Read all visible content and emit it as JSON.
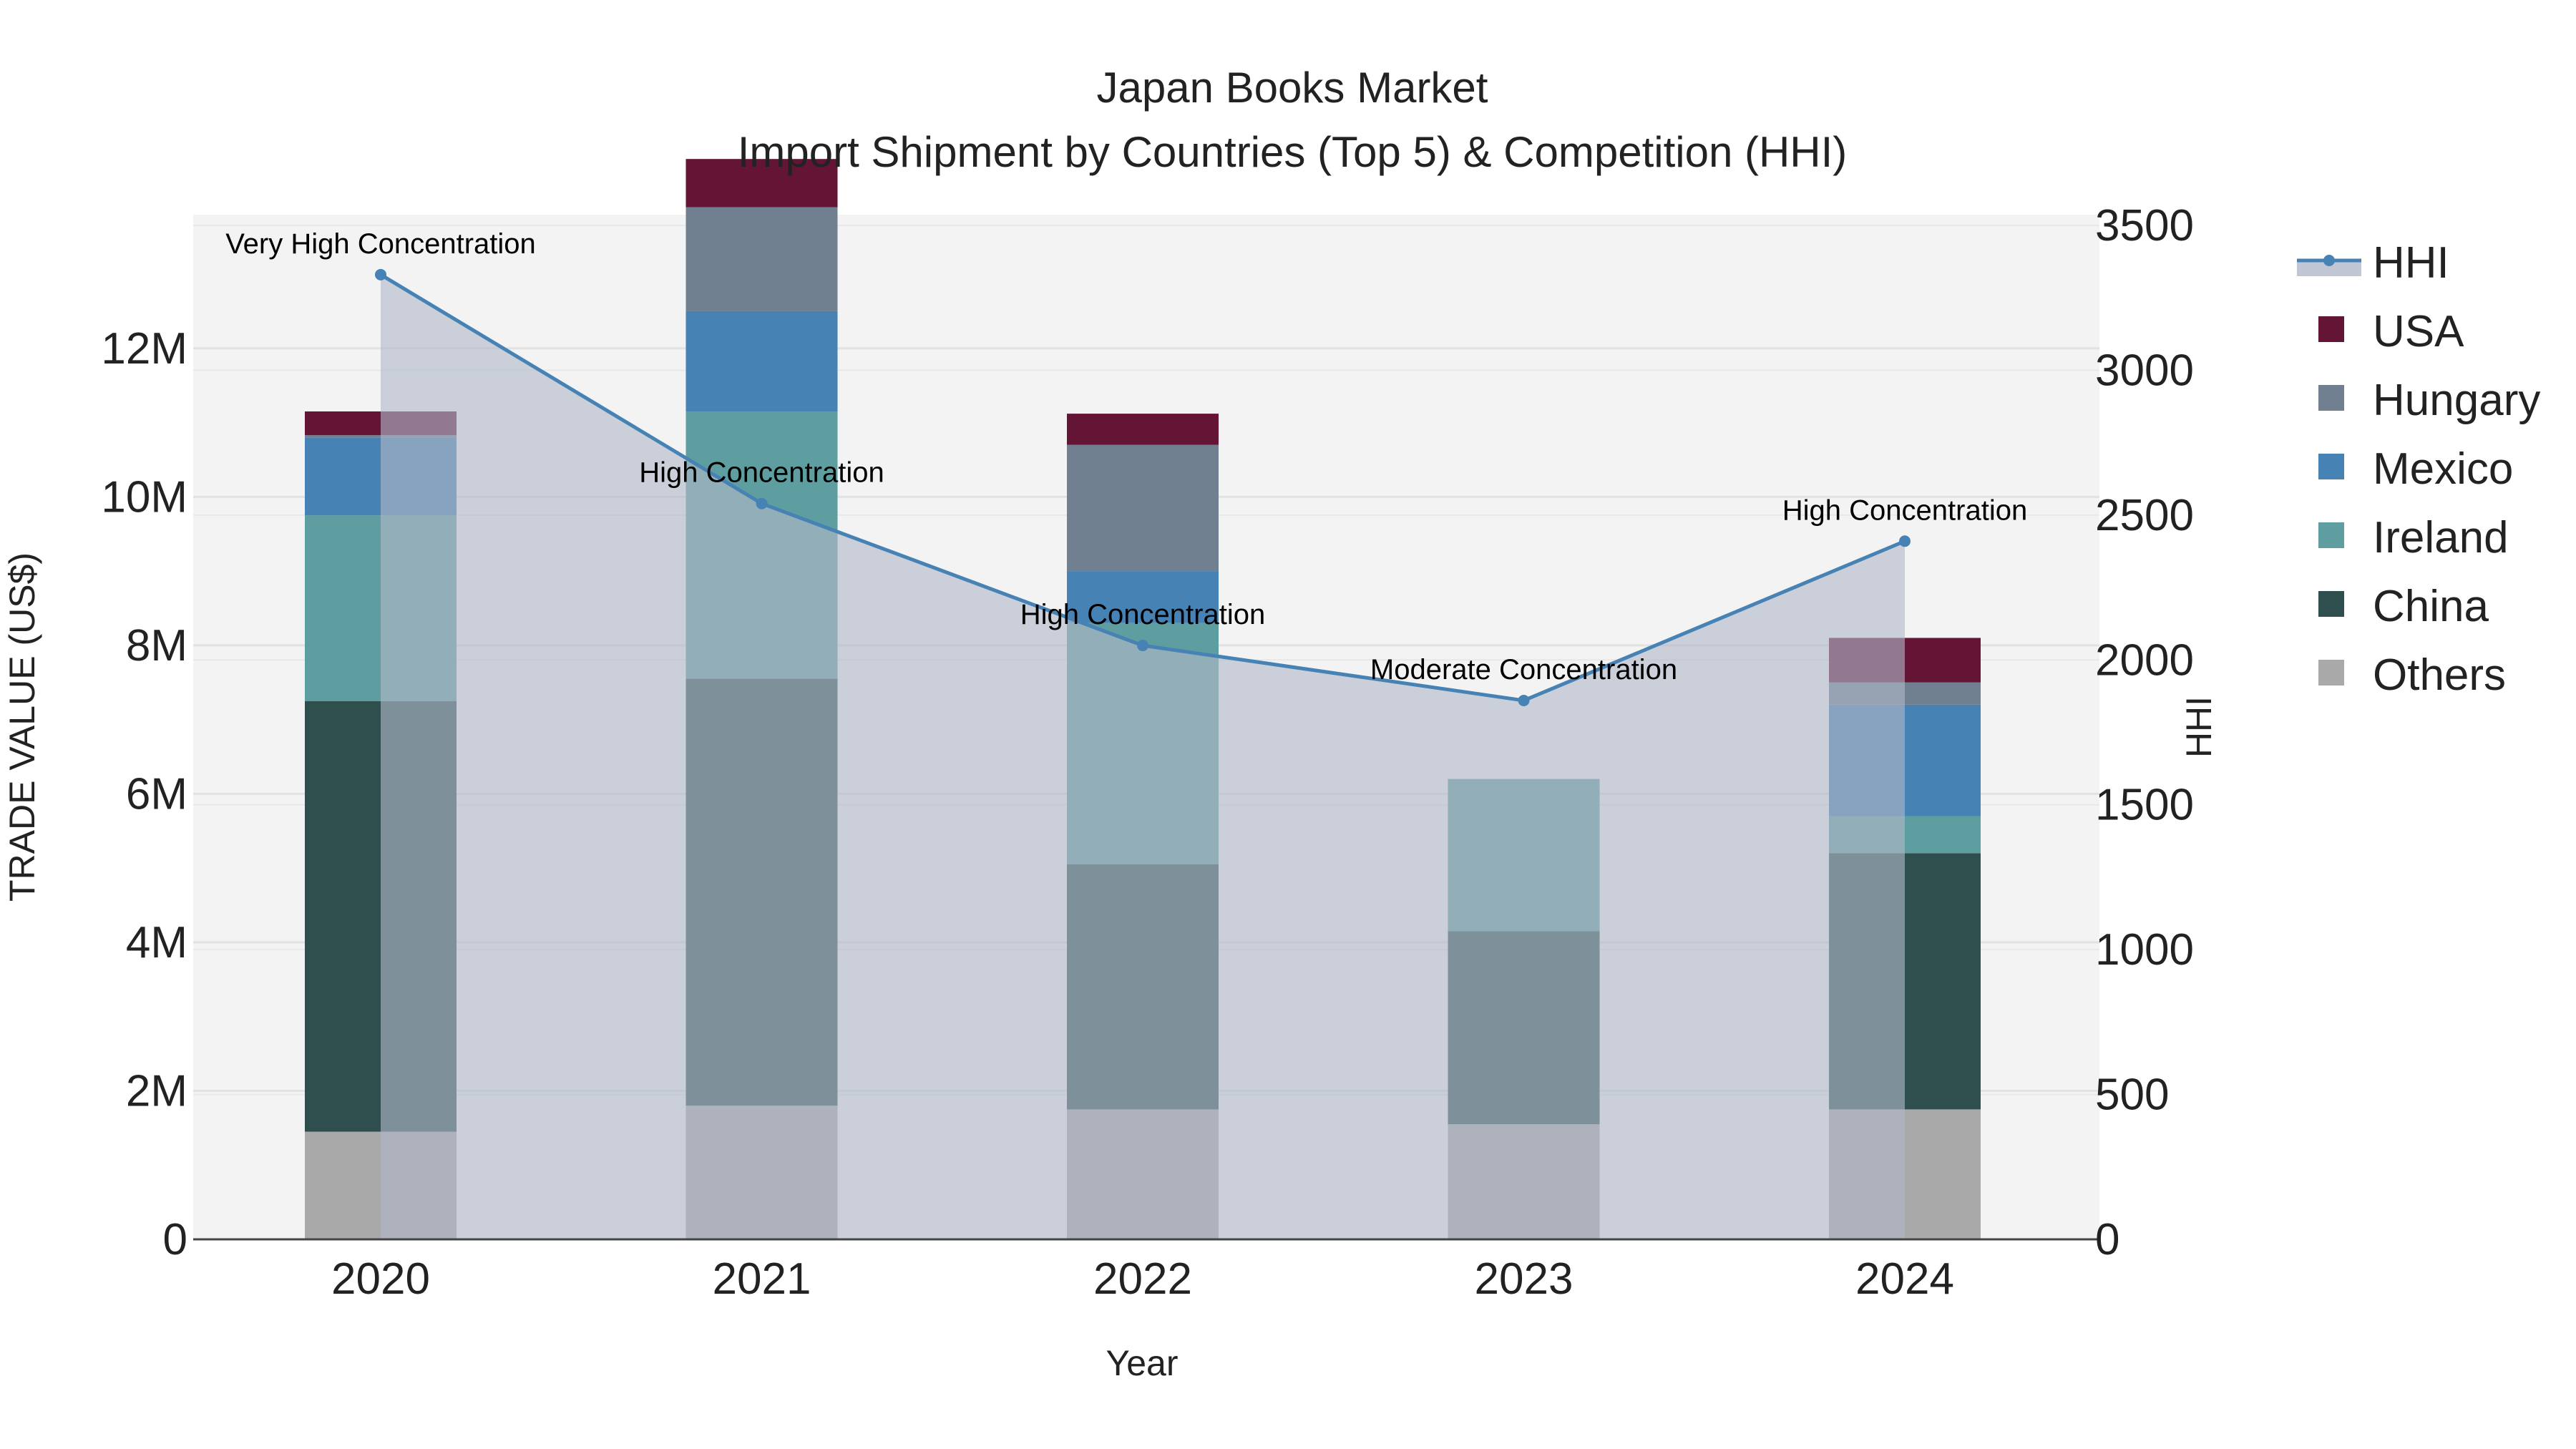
{
  "chart_data": {
    "type": "bar",
    "barmode": "stack",
    "title": "Japan Books Market",
    "subtitle": "Import Shipment by Countries (Top 5) & Competition (HHI)",
    "xlabel": "Year",
    "ylabel": "TRADE VALUE (US$)",
    "y2label": "HHI",
    "categories": [
      "2020",
      "2021",
      "2022",
      "2023",
      "2024"
    ],
    "ylim": [
      0,
      13800000
    ],
    "y_ticks": [
      0,
      2000000,
      4000000,
      6000000,
      8000000,
      10000000,
      12000000
    ],
    "y_tick_labels": [
      "0",
      "2M",
      "4M",
      "6M",
      "8M",
      "10M",
      "12M"
    ],
    "y2lim": [
      0,
      3500
    ],
    "y2_ticks": [
      0,
      500,
      1000,
      1500,
      2000,
      2500,
      3000,
      3500
    ],
    "y2_tick_labels": [
      "0",
      "500",
      "1000",
      "1500",
      "2000",
      "2500",
      "3000",
      "3500"
    ],
    "series": [
      {
        "name": "Others",
        "color": "#A9A9A9",
        "values": [
          1450000,
          1800000,
          1750000,
          1550000,
          1750000
        ]
      },
      {
        "name": "China",
        "color": "#2F4F4F",
        "values": [
          5800000,
          5750000,
          3300000,
          2600000,
          3450000
        ]
      },
      {
        "name": "Ireland",
        "color": "#5F9EA0",
        "values": [
          2500000,
          3600000,
          3250000,
          2050000,
          500000
        ]
      },
      {
        "name": "Mexico",
        "color": "#4682B4",
        "values": [
          1050000,
          1350000,
          700000,
          0,
          1500000
        ]
      },
      {
        "name": "Hungary",
        "color": "#708090",
        "values": [
          30000,
          1400000,
          1700000,
          0,
          300000
        ]
      },
      {
        "name": "USA",
        "color": "#641434",
        "values": [
          320000,
          650000,
          420000,
          0,
          600000
        ]
      }
    ],
    "line": {
      "name": "HHI",
      "axis": "y2",
      "color": "#4682B4",
      "fill_color": "#B0B8C8",
      "values": [
        3330,
        2540,
        2050,
        1860,
        2410
      ],
      "annotations": [
        "Very High Concentration",
        "High Concentration",
        "High Concentration",
        "Moderate Concentration",
        "High Concentration"
      ]
    },
    "legend_position": "right",
    "grid": true
  }
}
